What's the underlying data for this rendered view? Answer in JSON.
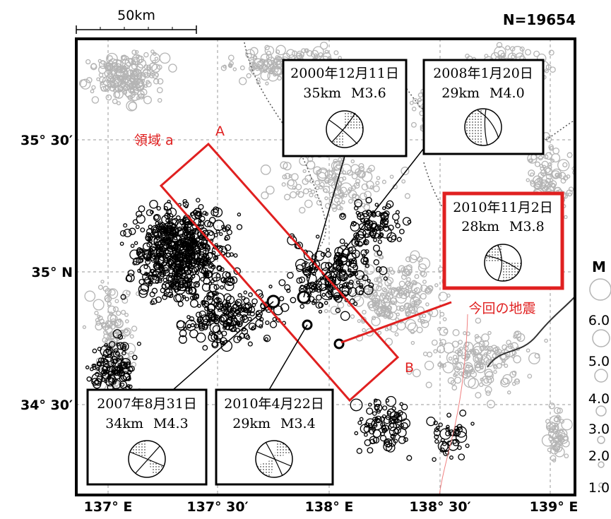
{
  "scale": {
    "label": "50km"
  },
  "count_label": "N=19654",
  "lat_labels": [
    "35° 30′",
    "35° N",
    "34° 30′"
  ],
  "lon_labels": [
    "137° E",
    "137° 30′",
    "138° E",
    "138° 30′",
    "139° E"
  ],
  "region": {
    "label": "領域 a",
    "end_a": "A",
    "end_b": "B"
  },
  "current_quake_label": "今回の地震",
  "magnitude_legend": {
    "title": "M",
    "values": [
      "6.0",
      "5.0",
      "4.0",
      "3.0",
      "2.0",
      "1.0"
    ]
  },
  "mechanisms": [
    {
      "id": "m2000",
      "date": "2000年12月11日",
      "depth": "35km",
      "mag": "M3.6"
    },
    {
      "id": "m2008",
      "date": "2008年1月20日",
      "depth": "29km",
      "mag": "M4.0"
    },
    {
      "id": "m2010nov",
      "date": "2010年11月2日",
      "depth": "28km",
      "mag": "M3.8"
    },
    {
      "id": "m2007",
      "date": "2007年8月31日",
      "depth": "34km",
      "mag": "M4.3"
    },
    {
      "id": "m2010apr",
      "date": "2010年4月22日",
      "depth": "29km",
      "mag": "M3.4"
    }
  ],
  "colors": {
    "old_events": "#000000",
    "recent_events": "#b4b4b4",
    "highlight": "#e02020",
    "border_line": "#555555"
  }
}
